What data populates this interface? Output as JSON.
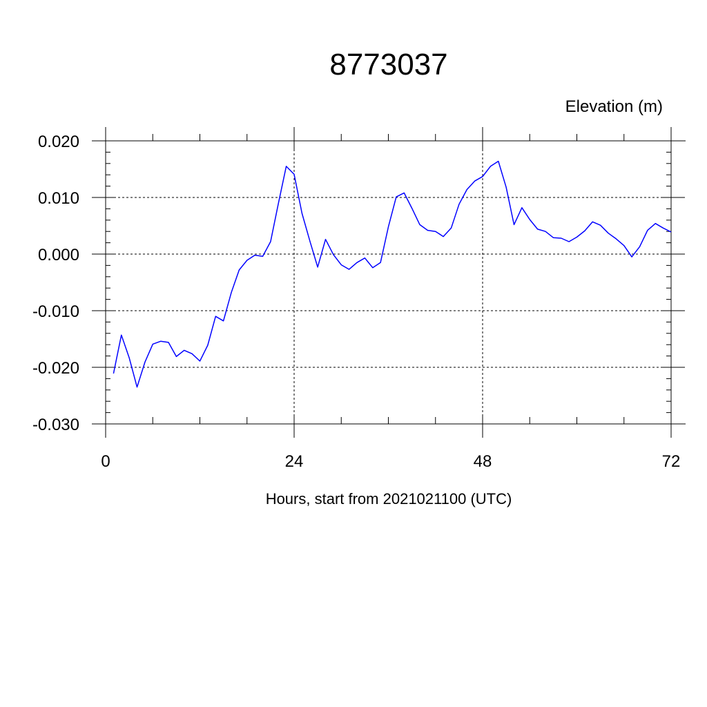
{
  "chart_data": {
    "type": "line",
    "title": "8773037",
    "ylabel": "Elevation (m)",
    "xlabel": "Hours, start from 2021021100 (UTC)",
    "xlim": [
      0,
      72
    ],
    "ylim": [
      -0.03,
      0.02
    ],
    "xticks": [
      0,
      24,
      48,
      72
    ],
    "xtick_labels": [
      "0",
      "24",
      "48",
      "72"
    ],
    "yticks": [
      -0.03,
      -0.02,
      -0.01,
      0.0,
      0.01,
      0.02
    ],
    "ytick_labels": [
      "-0.030",
      "-0.020",
      "-0.010",
      "0.000",
      "0.010",
      "0.020"
    ],
    "grid": "dashed",
    "series": [
      {
        "color": "#0000ff",
        "x": [
          1,
          2,
          3,
          4,
          5,
          6,
          7,
          8,
          9,
          10,
          11,
          12,
          13,
          14,
          15,
          16,
          17,
          18,
          19,
          20,
          21,
          22,
          23,
          24,
          25,
          26,
          27,
          28,
          29,
          30,
          31,
          32,
          33,
          34,
          35,
          36,
          37,
          38,
          39,
          40,
          41,
          42,
          43,
          44,
          45,
          46,
          47,
          48,
          49,
          50,
          51,
          52,
          53,
          54,
          55,
          56,
          57,
          58,
          59,
          60,
          61,
          62,
          63,
          64,
          65,
          66,
          67,
          68,
          69,
          70,
          71,
          72
        ],
        "y": [
          -0.0211,
          -0.0143,
          -0.0183,
          -0.0235,
          -0.0191,
          -0.0159,
          -0.0154,
          -0.0156,
          -0.0181,
          -0.017,
          -0.0176,
          -0.0189,
          -0.0161,
          -0.011,
          -0.0118,
          -0.0068,
          -0.0028,
          -0.0011,
          -0.0002,
          -0.0004,
          0.0022,
          0.009,
          0.0155,
          0.0141,
          0.0072,
          0.0023,
          -0.0023,
          0.0026,
          -0.0001,
          -0.0019,
          -0.0027,
          -0.0015,
          -0.0007,
          -0.0024,
          -0.0015,
          0.0048,
          0.0101,
          0.0108,
          0.0081,
          0.0052,
          0.0042,
          0.004,
          0.0031,
          0.0046,
          0.0088,
          0.0114,
          0.0129,
          0.0137,
          0.0155,
          0.0164,
          0.0118,
          0.0052,
          0.0082,
          0.0061,
          0.0044,
          0.004,
          0.0029,
          0.0028,
          0.0022,
          0.003,
          0.0041,
          0.0057,
          0.0051,
          0.0037,
          0.0027,
          0.0015,
          -0.0005,
          0.0013,
          0.0042,
          0.0054,
          0.0046,
          0.0039
        ]
      }
    ]
  }
}
